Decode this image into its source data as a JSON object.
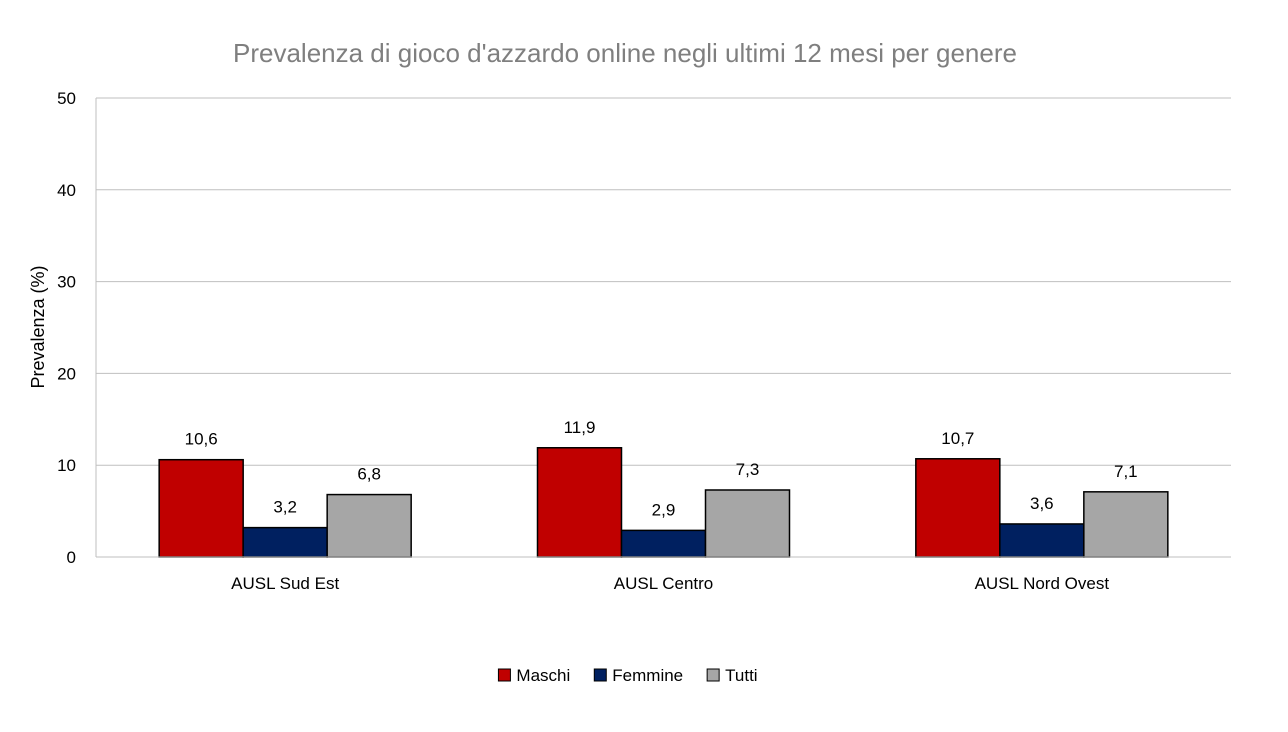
{
  "chart_data": {
    "type": "bar",
    "title": "Prevalenza di gioco d'azzardo online negli ultimi 12 mesi per genere",
    "xlabel": "",
    "ylabel": "Prevalenza (%)",
    "ylim": [
      0,
      50
    ],
    "yticks": [
      0,
      10,
      20,
      30,
      40,
      50
    ],
    "grid": true,
    "legend_position": "bottom",
    "categories": [
      "AUSL Sud Est",
      "AUSL Centro",
      "AUSL Nord Ovest"
    ],
    "series": [
      {
        "name": "Maschi",
        "color": "#c00000",
        "values": [
          10.6,
          11.9,
          10.7
        ],
        "labels": [
          "10,6",
          "11,9",
          "10,7"
        ]
      },
      {
        "name": "Femmine",
        "color": "#002060",
        "values": [
          3.2,
          2.9,
          3.6
        ],
        "labels": [
          "3,2",
          "2,9",
          "3,6"
        ]
      },
      {
        "name": "Tutti",
        "color": "#a6a6a6",
        "values": [
          6.8,
          7.3,
          7.1
        ],
        "labels": [
          "6,8",
          "7,3",
          "7,1"
        ]
      }
    ]
  }
}
